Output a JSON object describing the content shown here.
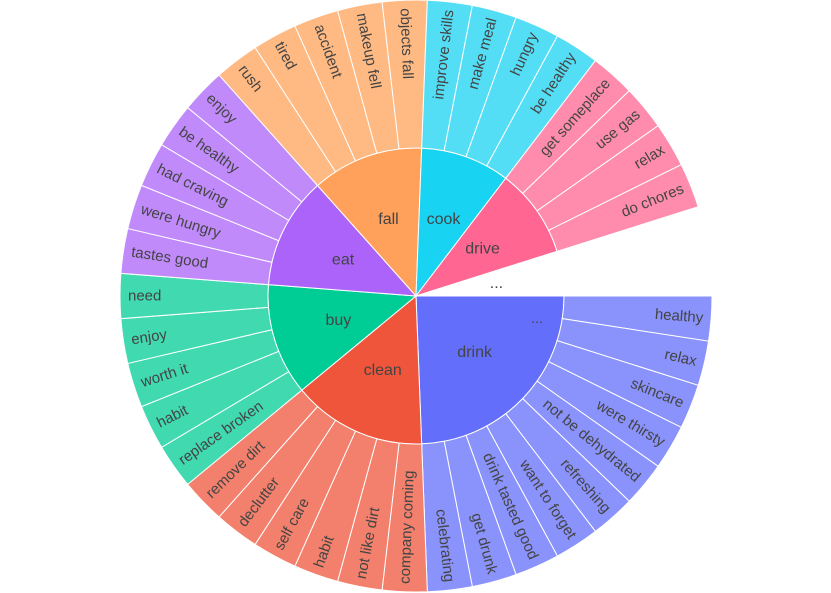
{
  "chart_data": {
    "type": "sunburst",
    "title": "",
    "more_indicator": "...",
    "categories": [
      {
        "name": "drink",
        "value": 10,
        "color": "#636efa",
        "children": [
          {
            "name": "healthy",
            "value": 1
          },
          {
            "name": "relax",
            "value": 1
          },
          {
            "name": "skincare",
            "value": 1
          },
          {
            "name": "were thirsty",
            "value": 1
          },
          {
            "name": "not be dehydrated",
            "value": 1
          },
          {
            "name": "refreshing",
            "value": 1
          },
          {
            "name": "want to forget",
            "value": 1
          },
          {
            "name": "drink tasted good",
            "value": 1
          },
          {
            "name": "get drunk",
            "value": 1
          },
          {
            "name": "celebrating",
            "value": 1
          }
        ]
      },
      {
        "name": "clean",
        "value": 6,
        "color": "#ef553b",
        "children": [
          {
            "name": "company coming",
            "value": 1
          },
          {
            "name": "not like dirt",
            "value": 1
          },
          {
            "name": "habit",
            "value": 1
          },
          {
            "name": "self care",
            "value": 1
          },
          {
            "name": "declutter",
            "value": 1
          },
          {
            "name": "remove dirt",
            "value": 1
          }
        ]
      },
      {
        "name": "buy",
        "value": 5,
        "color": "#00cc96",
        "children": [
          {
            "name": "replace broken",
            "value": 1
          },
          {
            "name": "habit",
            "value": 1
          },
          {
            "name": "worth it",
            "value": 1
          },
          {
            "name": "enjoy",
            "value": 1
          },
          {
            "name": "need",
            "value": 1
          }
        ]
      },
      {
        "name": "eat",
        "value": 5,
        "color": "#ab63fa",
        "children": [
          {
            "name": "tastes good",
            "value": 1
          },
          {
            "name": "were hungry",
            "value": 1
          },
          {
            "name": "had craving",
            "value": 1
          },
          {
            "name": "be healthy",
            "value": 1
          },
          {
            "name": "enjoy",
            "value": 1
          }
        ]
      },
      {
        "name": "fall",
        "value": 5,
        "color": "#ffa15a",
        "children": [
          {
            "name": "rush",
            "value": 1
          },
          {
            "name": "tired",
            "value": 1
          },
          {
            "name": "accident",
            "value": 1
          },
          {
            "name": "makeup fell",
            "value": 1
          },
          {
            "name": "objects fall",
            "value": 1
          }
        ]
      },
      {
        "name": "cook",
        "value": 4,
        "color": "#19d3f3",
        "children": [
          {
            "name": "improve skills",
            "value": 1
          },
          {
            "name": "make meal",
            "value": 1
          },
          {
            "name": "hungry",
            "value": 1
          },
          {
            "name": "be healthy",
            "value": 1
          }
        ]
      },
      {
        "name": "drive",
        "value": 4,
        "color": "#ff6692",
        "children": [
          {
            "name": "get someplace",
            "value": 1
          },
          {
            "name": "use gas",
            "value": 1
          },
          {
            "name": "relax",
            "value": 1
          },
          {
            "name": "do chores",
            "value": 1
          }
        ]
      },
      {
        "name": "...",
        "value": 2,
        "color": "#ffffff",
        "children": []
      }
    ]
  }
}
